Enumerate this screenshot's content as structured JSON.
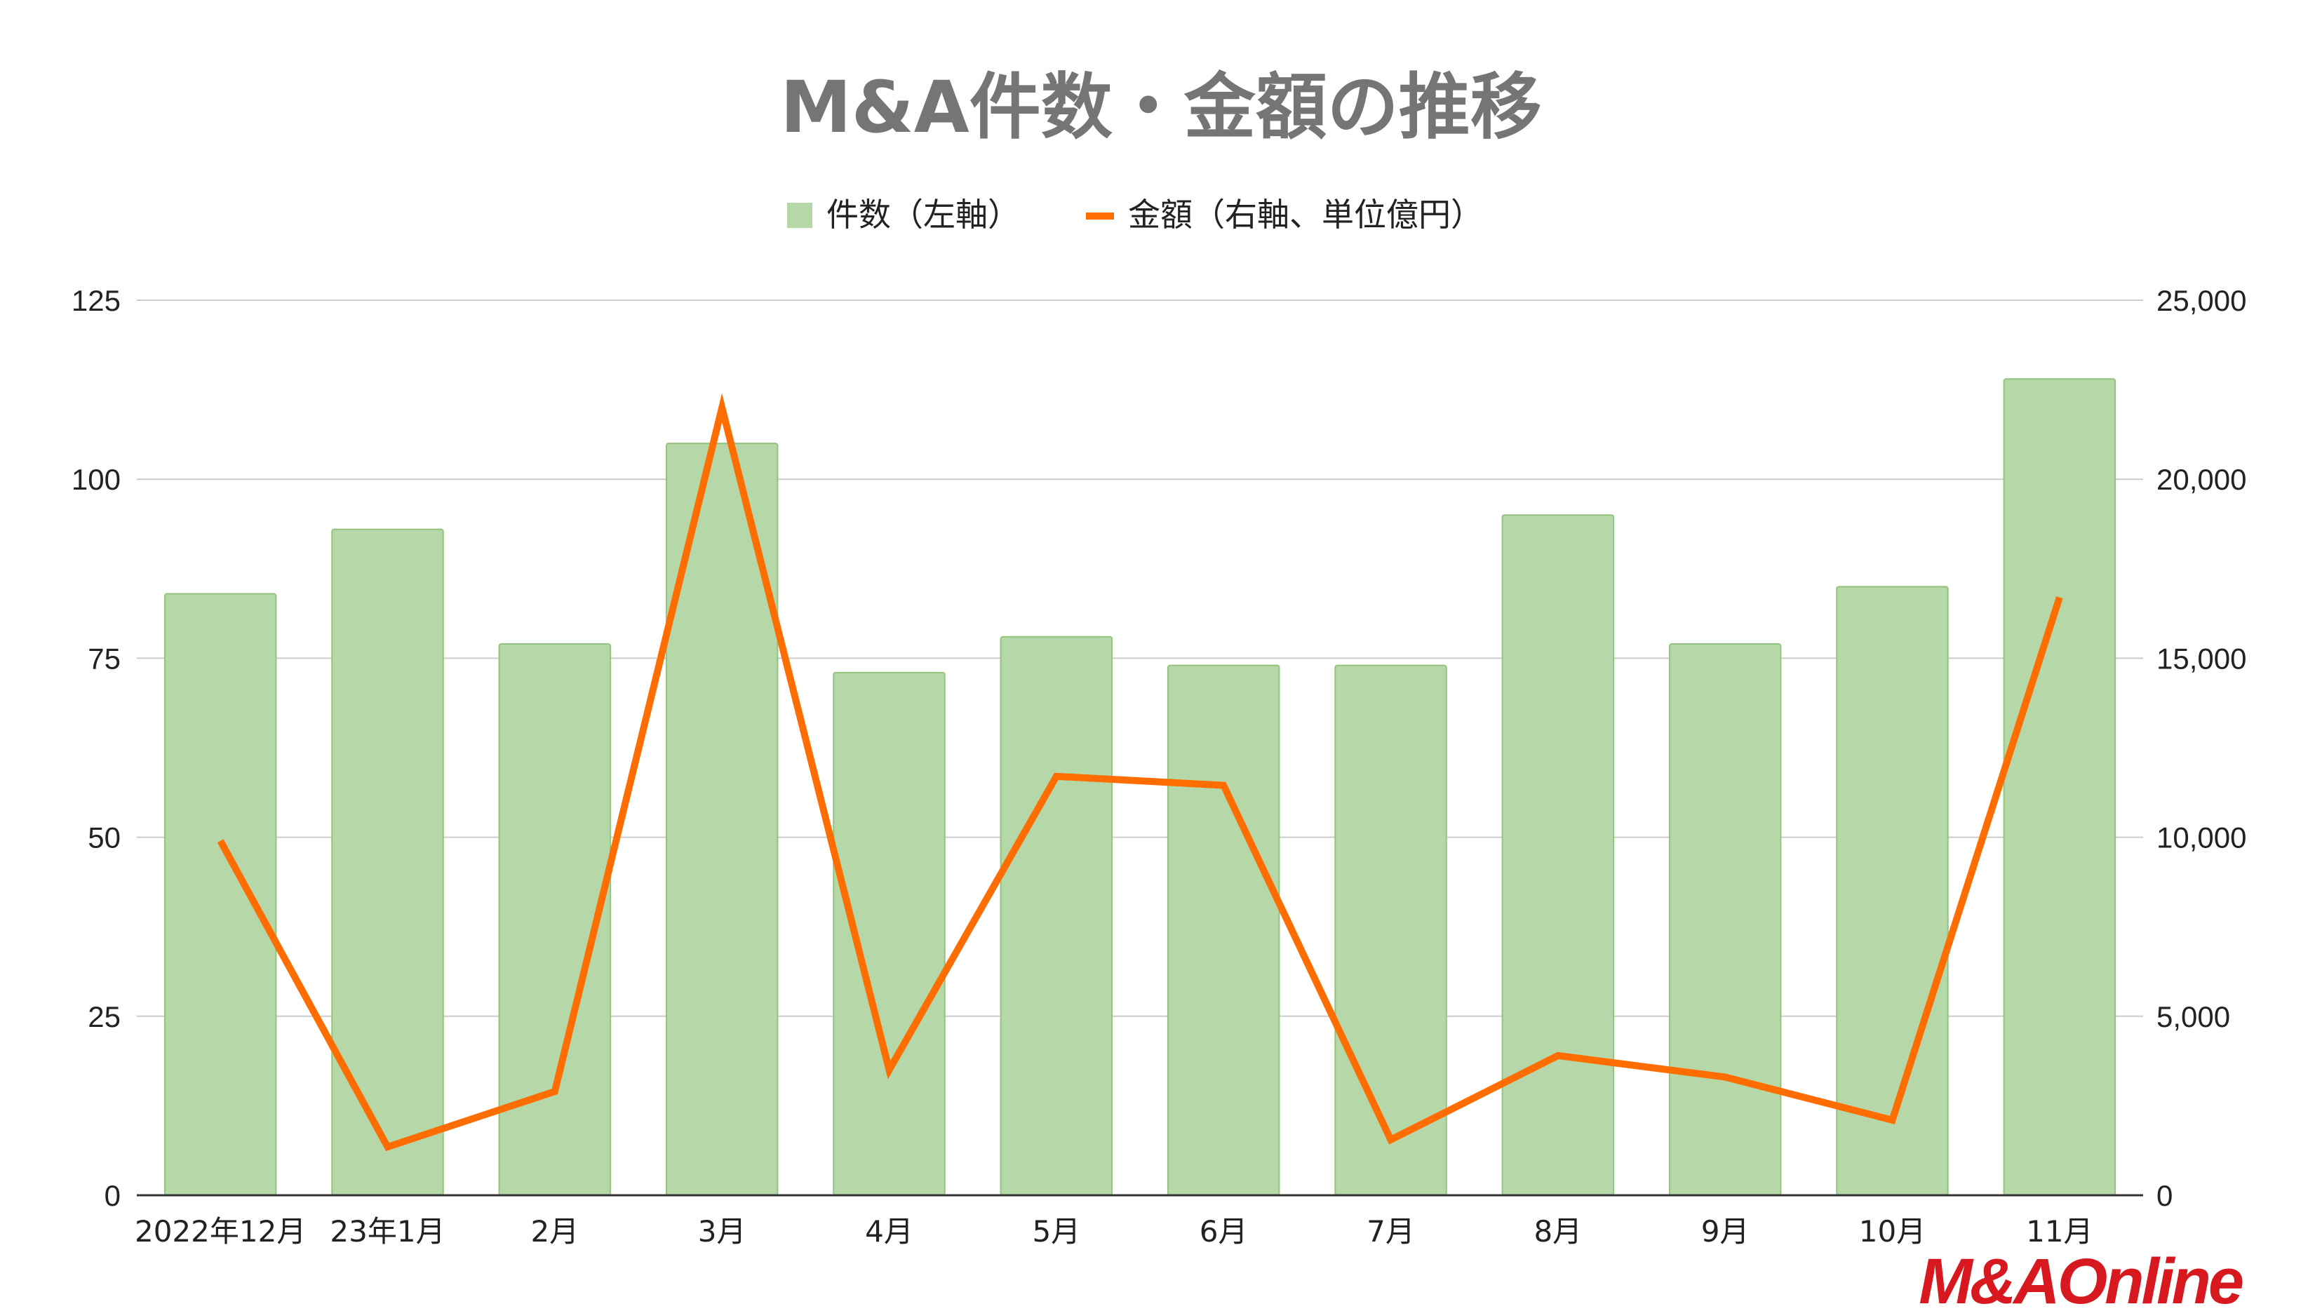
{
  "chart_data": {
    "type": "bar",
    "title": "M&A件数・金額の推移",
    "categories": [
      "2022年12月",
      "23年1月",
      "2月",
      "3月",
      "4月",
      "5月",
      "6月",
      "7月",
      "8月",
      "9月",
      "10月",
      "11月"
    ],
    "series": [
      {
        "name": "件数（左軸）",
        "type": "bar",
        "axis": "left",
        "color": "#b6d7a8",
        "border_color": "#93c47d",
        "values": [
          84,
          93,
          77,
          105,
          73,
          78,
          74,
          74,
          95,
          77,
          85,
          114
        ]
      },
      {
        "name": "金額（右軸、単位億円）",
        "type": "line",
        "axis": "right",
        "color": "#ff6d01",
        "values": [
          9900,
          1350,
          2900,
          22000,
          3500,
          11700,
          11450,
          1550,
          3900,
          3300,
          2100,
          16700
        ]
      }
    ],
    "y_left": {
      "range": [
        0,
        125
      ],
      "ticks": [
        "0",
        "25",
        "50",
        "75",
        "100",
        "125"
      ],
      "tick_values": [
        0,
        25,
        50,
        75,
        100,
        125
      ]
    },
    "y_right": {
      "range": [
        0,
        25000
      ],
      "ticks": [
        "0",
        "5,000",
        "10,000",
        "15,000",
        "20,000",
        "25,000"
      ],
      "tick_values": [
        0,
        5000,
        10000,
        15000,
        20000,
        25000
      ]
    },
    "grid": true,
    "legend_position": "top-center"
  },
  "logo": {
    "text": "M&AOnline",
    "color": "#d7191f"
  }
}
